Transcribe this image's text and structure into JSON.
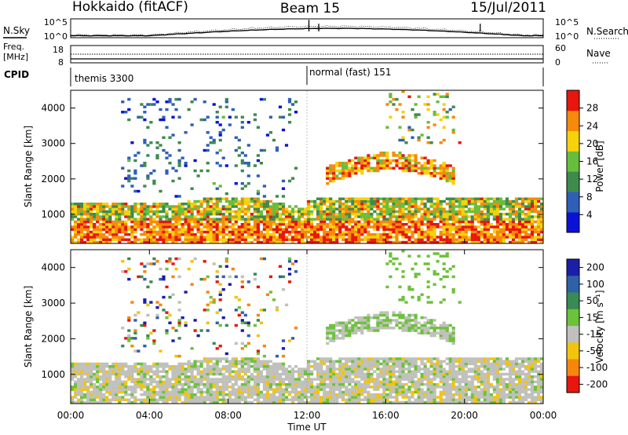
{
  "header": {
    "station": "Hokkaido (fitACF)",
    "beam": "Beam 15",
    "date": "15/Jul/2011"
  },
  "top_panels": {
    "nsky_label": "N.Sky",
    "nsky_ticks": [
      "10^5",
      "10^0"
    ],
    "nsearch_label": "N.Search",
    "nsearch_ticks": [
      "10^5",
      "10^0"
    ],
    "freq_label_line1": "Freq.",
    "freq_label_line2": "[MHz]",
    "freq_ticks": [
      "18",
      "8"
    ],
    "nave_label": "Nave",
    "nave_ticks": [
      "60",
      "0"
    ],
    "cpid_label": "CPID",
    "cpid_segments": [
      {
        "start_hour": 0,
        "label": "themis 3300"
      },
      {
        "start_hour": 12,
        "label": "normal (fast) 151"
      }
    ]
  },
  "chart_data": [
    {
      "type": "heatmap",
      "name": "power",
      "ylabel": "Slant Range [km]",
      "yticks": [
        "1000",
        "2000",
        "3000",
        "4000"
      ],
      "ylim": [
        180,
        4500
      ],
      "xlim": [
        0,
        24
      ],
      "colorbar_label": "Power [dB]",
      "colorbar_ticks": [
        "4",
        "8",
        "12",
        "16",
        "20",
        "24",
        "28"
      ],
      "colorbar_colors": [
        "#0b12d6",
        "#2f5fb8",
        "#3f8a4c",
        "#69bd3d",
        "#f5d20a",
        "#f78a0a",
        "#e8160c"
      ],
      "colorbar_range": [
        0,
        32
      ]
    },
    {
      "type": "heatmap",
      "name": "velocity",
      "ylabel": "Slant Range [km]",
      "yticks": [
        "1000",
        "2000",
        "3000",
        "4000"
      ],
      "ylim": [
        180,
        4500
      ],
      "xlim": [
        0,
        24
      ],
      "xlabel": "Time UT",
      "xticks": [
        "00:00",
        "04:00",
        "08:00",
        "12:00",
        "16:00",
        "20:00",
        "00:00"
      ],
      "colorbar_label": "Velocity [m s⁻¹]",
      "colorbar_ticks": [
        "200",
        "100",
        "50",
        "15",
        "-15",
        "-50",
        "-100",
        "-200"
      ],
      "colorbar_colors": [
        "#1a1ea8",
        "#2f61a8",
        "#3a8a55",
        "#6cc23a",
        "#c0c0bc",
        "#f2c40c",
        "#f7870c",
        "#e8160c"
      ]
    }
  ]
}
